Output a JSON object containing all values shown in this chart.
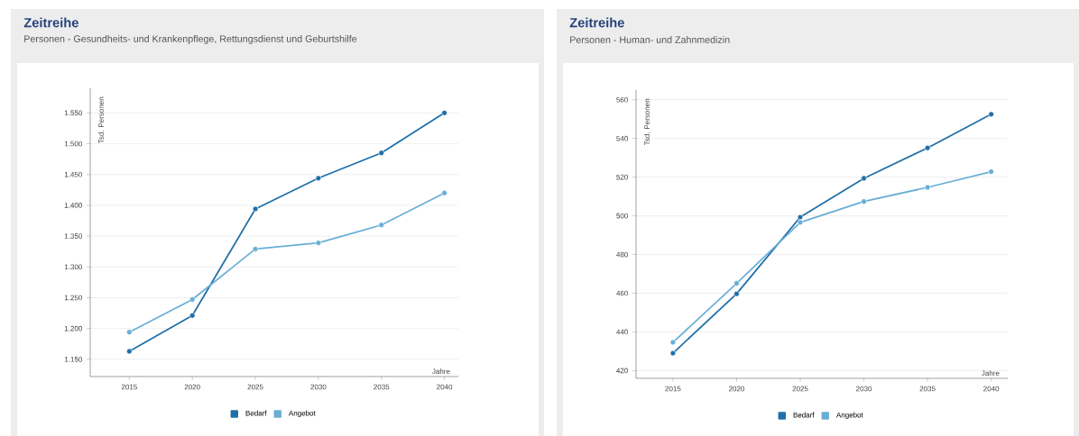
{
  "chart_data": [
    {
      "type": "line",
      "title": "Zeitreihe",
      "subtitle": "Personen - Gesundheits- und Krankenpflege, Rettungsdienst und Geburtshilfe",
      "xlabel": "Jahre",
      "ylabel": "Tsd. Personen",
      "x": [
        2015,
        2020,
        2025,
        2030,
        2035,
        2040
      ],
      "series": [
        {
          "name": "Bedarf",
          "color": "#1f6fa8",
          "values": [
            1163,
            1221,
            1394,
            1444,
            1485,
            1550
          ]
        },
        {
          "name": "Angebot",
          "color": "#6aaed6",
          "values": [
            1194,
            1247,
            1329,
            1339,
            1368,
            1420
          ]
        }
      ],
      "xlim": [
        2011.9,
        2041.1
      ],
      "ylim": [
        1122,
        1590
      ],
      "xticks": [
        2015,
        2020,
        2025,
        2030,
        2035,
        2040
      ],
      "yticks": [
        {
          "value": 1150,
          "label": "1.150"
        },
        {
          "value": 1200,
          "label": "1.200"
        },
        {
          "value": 1250,
          "label": "1.250"
        },
        {
          "value": 1300,
          "label": "1.300"
        },
        {
          "value": 1350,
          "label": "1.350"
        },
        {
          "value": 1400,
          "label": "1.400"
        },
        {
          "value": 1450,
          "label": "1.450"
        },
        {
          "value": 1500,
          "label": "1.500"
        },
        {
          "value": 1550,
          "label": "1.550"
        }
      ],
      "grid": "y",
      "legend": "bottom",
      "marker": "circle",
      "line_style": "solid"
    },
    {
      "type": "line",
      "title": "Zeitreihe",
      "subtitle": "Personen - Human- und Zahnmedizin",
      "xlabel": "Jahre",
      "ylabel": "Tsd. Personen",
      "x": [
        2015,
        2020,
        2025,
        2030,
        2035,
        2040
      ],
      "series": [
        {
          "name": "Bedarf",
          "color": "#1f6fa8",
          "values": [
            429,
            459.7,
            499.3,
            519.4,
            535.1,
            552.5
          ]
        },
        {
          "name": "Angebot",
          "color": "#6aaed6",
          "values": [
            434.6,
            465.1,
            496.6,
            507.4,
            514.7,
            522.8
          ]
        }
      ],
      "xlim": [
        2012.1,
        2041.3
      ],
      "ylim": [
        416,
        565
      ],
      "xticks": [
        2015,
        2020,
        2025,
        2030,
        2035,
        2040
      ],
      "yticks": [
        420,
        440,
        460,
        480,
        500,
        520,
        540,
        560
      ],
      "grid": "y",
      "legend": "bottom",
      "marker": "circle",
      "line_style": "solid"
    }
  ]
}
